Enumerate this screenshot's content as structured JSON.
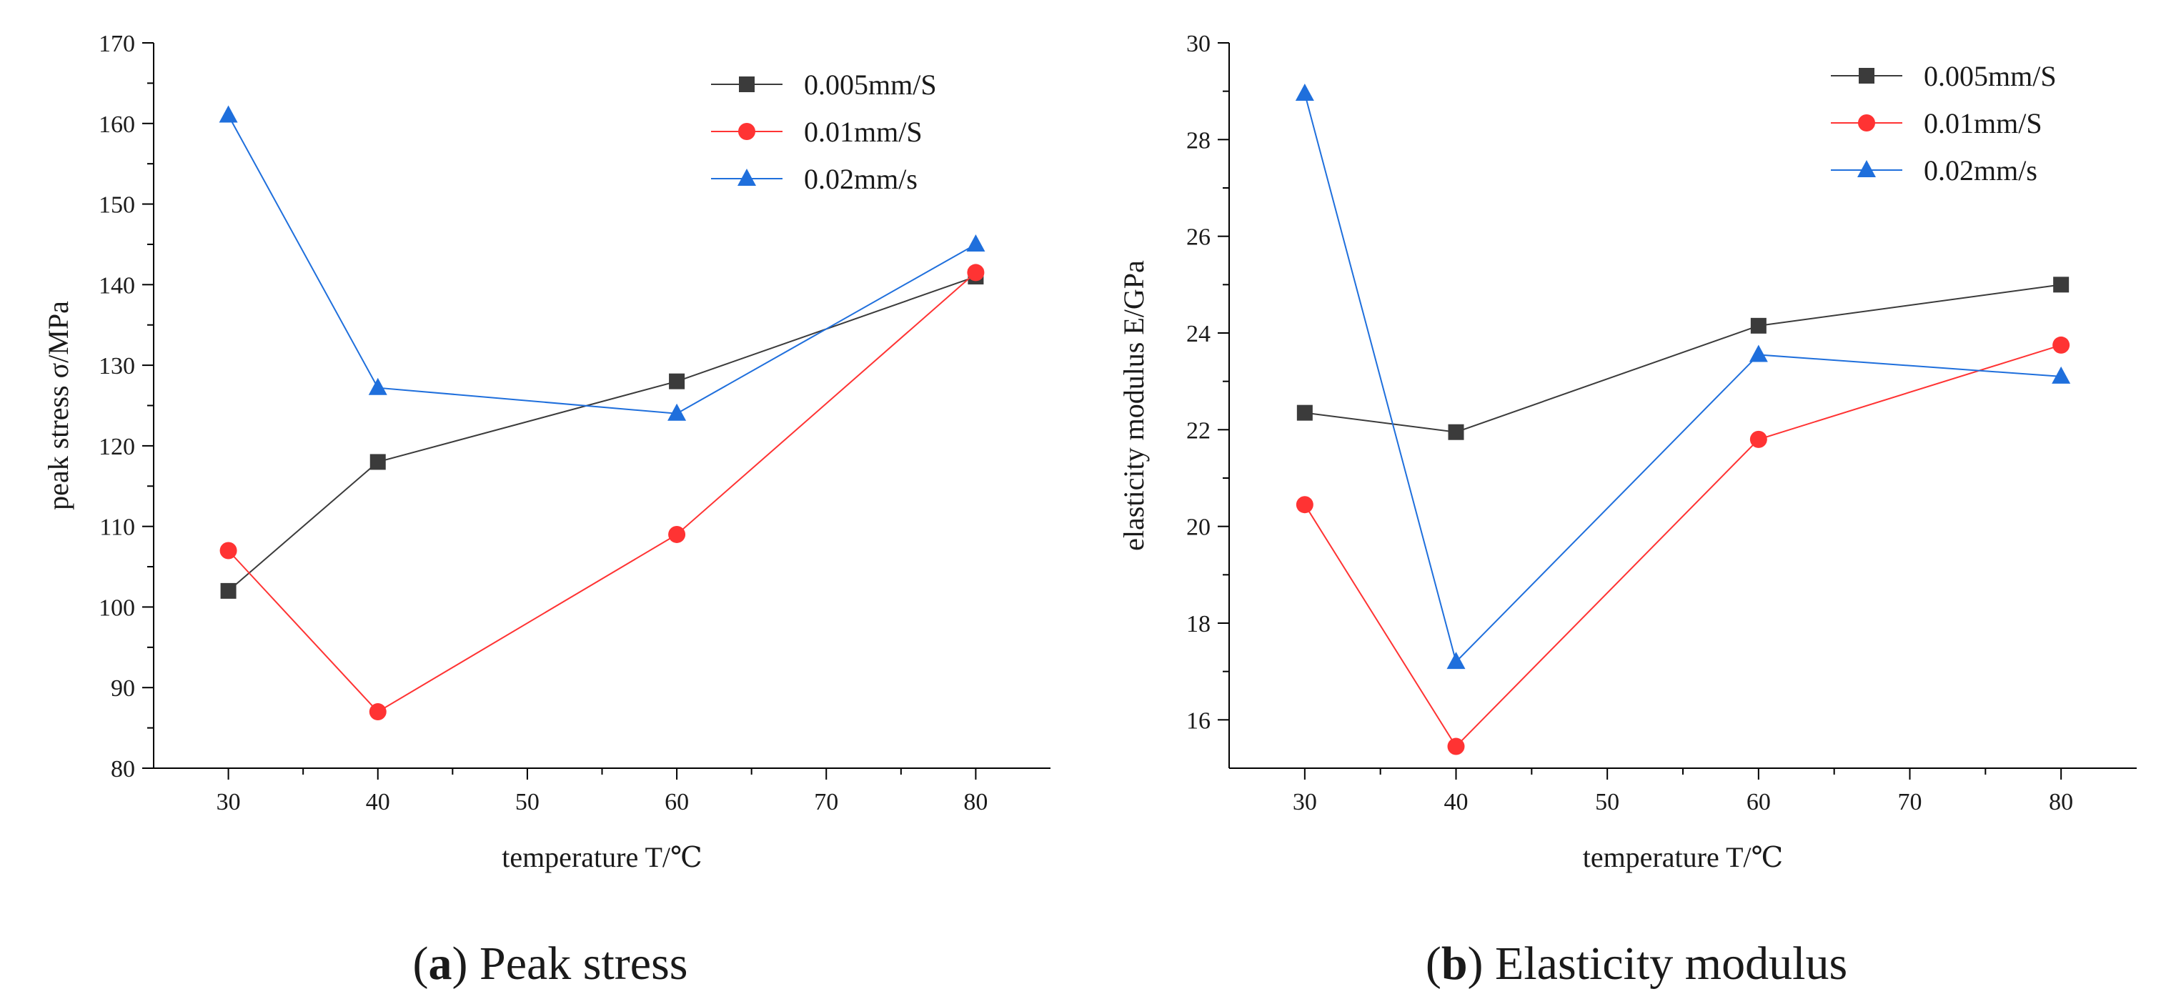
{
  "colors": {
    "series_0": "#3b3b3b",
    "series_1": "#ff3333",
    "series_2": "#1f6fdc",
    "axis": "#000000"
  },
  "chart_data": [
    {
      "type": "line",
      "caption_letter": "a",
      "caption_rest": ") Peak stress",
      "caption_open": "(",
      "xlabel": "temperature T/℃",
      "ylabel": "peak stress  σ/MPa",
      "xlim": [
        25,
        85
      ],
      "ylim": [
        80,
        170
      ],
      "xticks": [
        30,
        40,
        50,
        60,
        70,
        80
      ],
      "yticks": [
        80,
        90,
        100,
        110,
        120,
        130,
        140,
        150,
        160,
        170
      ],
      "legend_position": "top-right",
      "x": [
        30,
        40,
        60,
        80
      ],
      "series": [
        {
          "name": "0.005mm/S",
          "marker": "square",
          "values": [
            102,
            118,
            128,
            141
          ]
        },
        {
          "name": "0.01mm/S",
          "marker": "circle",
          "values": [
            107,
            87,
            109,
            141.5
          ]
        },
        {
          "name": "0.02mm/s",
          "marker": "triangle",
          "values": [
            161,
            127.2,
            124,
            145
          ]
        }
      ]
    },
    {
      "type": "line",
      "caption_letter": "b",
      "caption_rest": ") Elasticity modulus",
      "caption_open": "(",
      "xlabel": "temperature T/℃",
      "ylabel": "elasticity modulus E/GPa",
      "xlim": [
        25,
        85
      ],
      "ylim": [
        15,
        30
      ],
      "xticks": [
        30,
        40,
        50,
        60,
        70,
        80
      ],
      "yticks": [
        16,
        18,
        20,
        22,
        24,
        26,
        28,
        30
      ],
      "legend_position": "top-right",
      "x": [
        30,
        40,
        60,
        80
      ],
      "series": [
        {
          "name": "0.005mm/S",
          "marker": "square",
          "values": [
            22.35,
            21.95,
            24.15,
            25.0
          ]
        },
        {
          "name": "0.01mm/S",
          "marker": "circle",
          "values": [
            20.45,
            15.45,
            21.8,
            23.75
          ]
        },
        {
          "name": "0.02mm/s",
          "marker": "triangle",
          "values": [
            28.95,
            17.2,
            23.55,
            23.1
          ]
        }
      ]
    }
  ]
}
